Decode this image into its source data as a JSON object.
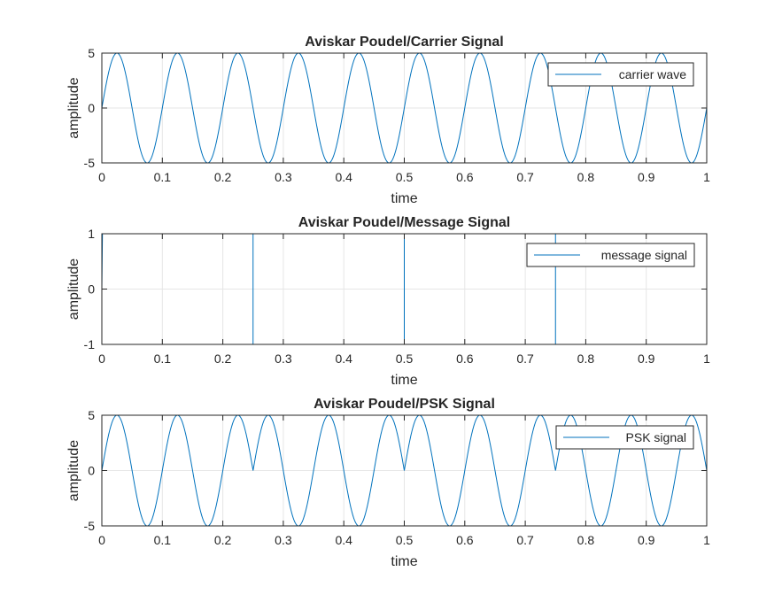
{
  "figure": {
    "line_color": "#0072BD",
    "grid_color": "#e6e6e6",
    "axes_color": "#262626"
  },
  "chart_data": [
    {
      "type": "line",
      "title": "Aviskar Poudel/Carrier Signal",
      "xlabel": "time",
      "ylabel": "amplitude",
      "xlim": [
        0,
        1
      ],
      "ylim": [
        -5,
        5
      ],
      "xticks": [
        "0",
        "0.1",
        "0.2",
        "0.3",
        "0.4",
        "0.5",
        "0.6",
        "0.7",
        "0.8",
        "0.9",
        "1"
      ],
      "yticks": [
        "-5",
        "0",
        "5"
      ],
      "grid": true,
      "legend": {
        "placement": "top-right",
        "entries": [
          "carrier wave"
        ]
      },
      "series": [
        {
          "name": "carrier wave",
          "function": "5*sin(2*pi*10*t)",
          "amplitude": 5,
          "frequency_hz": 10,
          "x_range": [
            0,
            1
          ]
        }
      ]
    },
    {
      "type": "line",
      "title": "Aviskar Poudel/Message Signal",
      "xlabel": "time",
      "ylabel": "amplitude",
      "xlim": [
        0,
        1
      ],
      "ylim": [
        -1,
        1
      ],
      "xticks": [
        "0",
        "0.1",
        "0.2",
        "0.3",
        "0.4",
        "0.5",
        "0.6",
        "0.7",
        "0.8",
        "0.9",
        "1"
      ],
      "yticks": [
        "-1",
        "0",
        "1"
      ],
      "grid": true,
      "legend": {
        "placement": "top-right",
        "entries": [
          "message signal"
        ]
      },
      "series": [
        {
          "name": "message signal",
          "x": [
            0,
            0.001,
            0.25,
            0.25,
            0.5,
            0.5,
            0.75,
            0.75,
            1
          ],
          "y": [
            0,
            1,
            1,
            -1,
            -1,
            1,
            1,
            -1,
            -1
          ]
        }
      ]
    },
    {
      "type": "line",
      "title": "Aviskar Poudel/PSK Signal",
      "xlabel": "time",
      "ylabel": "amplitude",
      "xlim": [
        0,
        1
      ],
      "ylim": [
        -5,
        5
      ],
      "xticks": [
        "0",
        "0.1",
        "0.2",
        "0.3",
        "0.4",
        "0.5",
        "0.6",
        "0.7",
        "0.8",
        "0.9",
        "1"
      ],
      "yticks": [
        "-5",
        "0",
        "5"
      ],
      "grid": true,
      "legend": {
        "placement": "top-right",
        "entries": [
          "PSK signal"
        ]
      },
      "series": [
        {
          "name": "PSK signal",
          "function": "5*sin(2*pi*10*t)*message(t)",
          "amplitude": 5,
          "frequency_hz": 10,
          "x_range": [
            0,
            1
          ]
        }
      ]
    }
  ]
}
